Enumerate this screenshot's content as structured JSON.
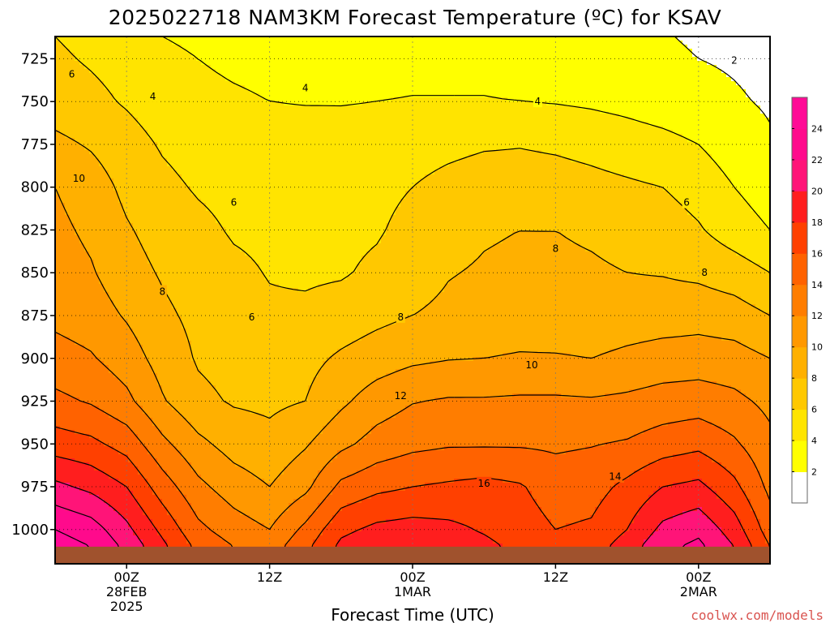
{
  "chart_data": {
    "type": "heatmap",
    "title": "2025022718 NAM3KM Forecast Temperature (ºC) for KSAV",
    "xlabel": "Forecast Time (UTC)",
    "ylabel": "",
    "x_ticks": [
      {
        "lines": [
          "00Z",
          "28FEB",
          "2025"
        ],
        "hours_from_start": 6
      },
      {
        "lines": [
          "12Z"
        ],
        "hours_from_start": 18
      },
      {
        "lines": [
          "00Z",
          "1MAR"
        ],
        "hours_from_start": 30
      },
      {
        "lines": [
          "12Z"
        ],
        "hours_from_start": 42
      },
      {
        "lines": [
          "00Z",
          "2MAR"
        ],
        "hours_from_start": 54
      }
    ],
    "x_range_hours": [
      0,
      60
    ],
    "y_ticks": [
      725,
      750,
      775,
      800,
      825,
      850,
      875,
      900,
      925,
      950,
      975,
      1000
    ],
    "y_range_hpa": [
      712,
      1020
    ],
    "ground_pressure_hpa": 1010,
    "grid": true,
    "colorbar": {
      "levels": [
        2,
        4,
        6,
        8,
        10,
        12,
        14,
        16,
        18,
        20,
        22,
        24
      ],
      "colors": [
        "#ffffff",
        "#ffff00",
        "#ffe400",
        "#ffc800",
        "#ffb000",
        "#ff9800",
        "#ff7d00",
        "#ff6200",
        "#ff4000",
        "#ff1e1e",
        "#ff1478",
        "#ff0a8c",
        "#ff0a96"
      ]
    },
    "temperature_grid": {
      "x_hours": [
        0,
        3,
        6,
        9,
        12,
        15,
        18,
        21,
        24,
        27,
        30,
        33,
        36,
        39,
        42,
        45,
        48,
        51,
        54,
        57,
        60
      ],
      "p_hpa": [
        712,
        725,
        750,
        775,
        800,
        825,
        850,
        875,
        900,
        925,
        950,
        975,
        1000,
        1010
      ],
      "rows": [
        [
          6.0,
          5.5,
          5.0,
          4.0,
          3.5,
          3.0,
          3.0,
          3.0,
          3.0,
          3.0,
          3.0,
          3.0,
          3.0,
          2.8,
          2.5,
          2.5,
          2.3,
          2.1,
          1.8,
          1.5,
          1.0
        ],
        [
          6.3,
          5.8,
          5.3,
          4.6,
          4.0,
          3.6,
          3.4,
          3.3,
          3.3,
          3.3,
          3.4,
          3.4,
          3.4,
          3.2,
          3.0,
          2.8,
          2.5,
          2.3,
          2.0,
          1.8,
          1.5
        ],
        [
          7.0,
          6.5,
          5.8,
          5.0,
          4.6,
          4.3,
          4.0,
          3.9,
          3.9,
          4.0,
          4.1,
          4.1,
          4.1,
          4.0,
          3.9,
          3.7,
          3.4,
          3.0,
          2.6,
          2.2,
          1.8
        ],
        [
          8.5,
          7.8,
          6.8,
          5.8,
          5.2,
          5.0,
          5.0,
          5.0,
          4.9,
          5.0,
          5.2,
          5.5,
          5.8,
          5.9,
          5.7,
          5.4,
          5.0,
          4.6,
          4.0,
          3.0,
          2.2
        ],
        [
          10.0,
          9.0,
          7.5,
          6.5,
          5.8,
          5.4,
          5.5,
          5.3,
          5.3,
          5.5,
          6.0,
          6.6,
          7.0,
          7.0,
          6.9,
          6.6,
          6.3,
          6.0,
          5.2,
          4.0,
          3.0
        ],
        [
          10.5,
          9.6,
          8.2,
          7.2,
          6.5,
          5.8,
          5.6,
          5.4,
          5.5,
          5.8,
          6.6,
          7.3,
          7.8,
          8.0,
          8.0,
          7.8,
          7.5,
          7.0,
          6.2,
          5.0,
          4.0
        ],
        [
          11.0,
          10.2,
          8.8,
          7.8,
          7.0,
          6.4,
          5.9,
          5.7,
          5.8,
          6.4,
          7.2,
          7.9,
          8.2,
          8.4,
          8.3,
          8.2,
          8.0,
          7.9,
          7.6,
          7.0,
          6.0
        ],
        [
          11.5,
          11.0,
          9.8,
          8.4,
          7.5,
          6.8,
          6.3,
          6.4,
          6.9,
          7.5,
          8.0,
          8.4,
          8.7,
          8.9,
          8.6,
          8.5,
          8.8,
          9.0,
          9.2,
          8.9,
          8.0
        ],
        [
          12.8,
          12.2,
          11.0,
          9.2,
          7.8,
          7.3,
          7.2,
          7.4,
          8.3,
          9.0,
          9.6,
          9.9,
          10.0,
          10.2,
          10.2,
          10.0,
          10.5,
          10.9,
          11.0,
          10.8,
          10.0
        ],
        [
          14.5,
          13.8,
          12.5,
          10.2,
          8.5,
          7.8,
          7.6,
          8.0,
          9.6,
          11.0,
          11.9,
          12.2,
          12.2,
          12.3,
          12.3,
          12.2,
          12.4,
          12.8,
          13.0,
          12.5,
          11.5
        ],
        [
          17.0,
          16.5,
          15.2,
          12.5,
          10.5,
          9.2,
          8.6,
          9.8,
          11.5,
          12.8,
          13.5,
          13.8,
          13.8,
          13.8,
          13.7,
          13.9,
          14.2,
          15.0,
          15.5,
          14.3,
          12.5
        ],
        [
          20.5,
          19.5,
          18.0,
          15.0,
          12.5,
          11.0,
          10.0,
          11.5,
          14.5,
          15.5,
          16.0,
          16.3,
          16.6,
          16.2,
          15.0,
          15.2,
          16.5,
          18.0,
          18.5,
          16.5,
          13.5
        ],
        [
          24.0,
          23.0,
          20.5,
          17.5,
          14.5,
          13.0,
          12.0,
          14.5,
          17.5,
          18.5,
          18.8,
          18.5,
          17.8,
          17.0,
          16.0,
          16.3,
          18.0,
          20.5,
          21.5,
          19.0,
          15.0
        ],
        [
          25.0,
          24.0,
          21.5,
          18.5,
          15.5,
          14.0,
          13.0,
          15.5,
          18.5,
          19.5,
          19.5,
          19.0,
          18.5,
          17.5,
          16.5,
          17.0,
          19.0,
          21.5,
          22.5,
          20.0,
          16.0
        ]
      ]
    },
    "contour_labels": [
      {
        "text": "6",
        "hour": 1.4,
        "p": 734
      },
      {
        "text": "4",
        "hour": 8.2,
        "p": 747
      },
      {
        "text": "4",
        "hour": 21.0,
        "p": 742
      },
      {
        "text": "4",
        "hour": 40.5,
        "p": 750
      },
      {
        "text": "2",
        "hour": 57.0,
        "p": 726
      },
      {
        "text": "10",
        "hour": 2.0,
        "p": 795
      },
      {
        "text": "6",
        "hour": 15.0,
        "p": 809
      },
      {
        "text": "6",
        "hour": 53.0,
        "p": 809
      },
      {
        "text": "8",
        "hour": 42.0,
        "p": 836
      },
      {
        "text": "8",
        "hour": 9.0,
        "p": 861
      },
      {
        "text": "8",
        "hour": 54.5,
        "p": 850
      },
      {
        "text": "6",
        "hour": 16.5,
        "p": 876
      },
      {
        "text": "8",
        "hour": 29.0,
        "p": 876
      },
      {
        "text": "10",
        "hour": 40.0,
        "p": 904
      },
      {
        "text": "12",
        "hour": 29.0,
        "p": 922
      },
      {
        "text": "14",
        "hour": 47.0,
        "p": 969
      },
      {
        "text": "16",
        "hour": 36.0,
        "p": 973
      }
    ]
  },
  "credit": "coolwx.com/models"
}
